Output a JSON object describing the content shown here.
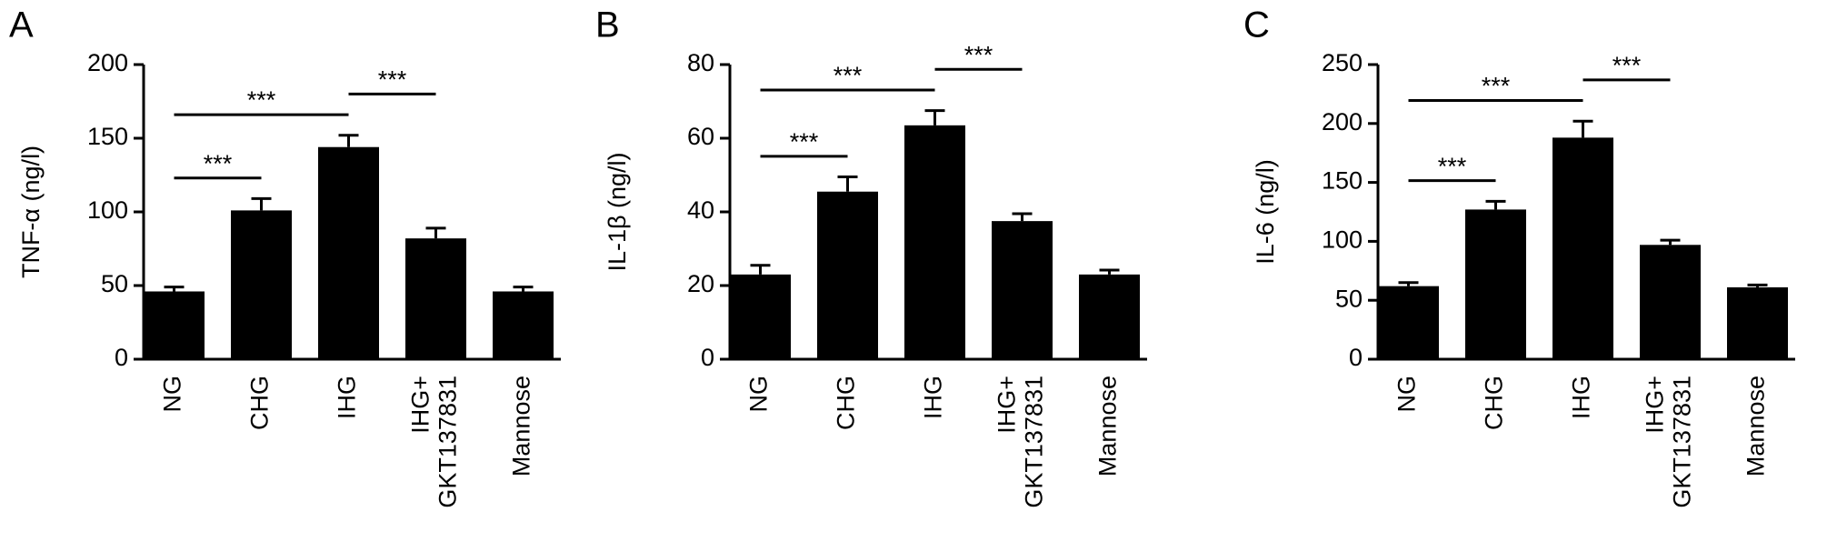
{
  "chart_data": [
    {
      "type": "bar",
      "panel": "A",
      "y_label": "TNF-α (ng/l)",
      "categories": [
        "NG",
        "CHG",
        "IHG",
        "IHG+\nGKT137831",
        "Mannose"
      ],
      "values": [
        46,
        101,
        144,
        82,
        46
      ],
      "errors": [
        3,
        8,
        8,
        7,
        3
      ],
      "color": "#000000",
      "ylim": [
        0,
        200
      ],
      "yticks": [
        0,
        50,
        100,
        150,
        200
      ],
      "annotations": [
        {
          "text": "***",
          "between": [
            "NG",
            "CHG"
          ]
        },
        {
          "text": "***",
          "between": [
            "NG",
            "IHG"
          ]
        },
        {
          "text": "***",
          "between": [
            "IHG",
            "IHG+\nGKT137831"
          ]
        }
      ]
    },
    {
      "type": "bar",
      "panel": "B",
      "y_label": "IL-1β (ng/l)",
      "categories": [
        "NG",
        "CHG",
        "IHG",
        "IHG+\nGKT137831",
        "Mannose"
      ],
      "values": [
        23,
        45.5,
        63.5,
        37.5,
        23
      ],
      "errors": [
        2.5,
        4,
        4,
        2,
        1.2
      ],
      "color": "#000000",
      "ylim": [
        0,
        80
      ],
      "yticks": [
        0,
        20,
        40,
        60,
        80
      ],
      "annotations": [
        {
          "text": "***",
          "between": [
            "NG",
            "CHG"
          ]
        },
        {
          "text": "***",
          "between": [
            "NG",
            "IHG"
          ]
        },
        {
          "text": "***",
          "between": [
            "IHG",
            "IHG+\nGKT137831"
          ]
        }
      ]
    },
    {
      "type": "bar",
      "panel": "C",
      "y_label": "IL-6 (ng/l)",
      "categories": [
        "NG",
        "CHG",
        "IHG",
        "IHG+\nGKT137831",
        "Mannose"
      ],
      "values": [
        62,
        127,
        188,
        97,
        61
      ],
      "errors": [
        3,
        7,
        14,
        4,
        2
      ],
      "color": "#000000",
      "ylim": [
        0,
        250
      ],
      "yticks": [
        0,
        50,
        100,
        150,
        200,
        250
      ],
      "annotations": [
        {
          "text": "***",
          "between": [
            "NG",
            "CHG"
          ]
        },
        {
          "text": "***",
          "between": [
            "NG",
            "IHG"
          ]
        },
        {
          "text": "***",
          "between": [
            "IHG",
            "IHG+\nGKT137831"
          ]
        }
      ]
    }
  ]
}
